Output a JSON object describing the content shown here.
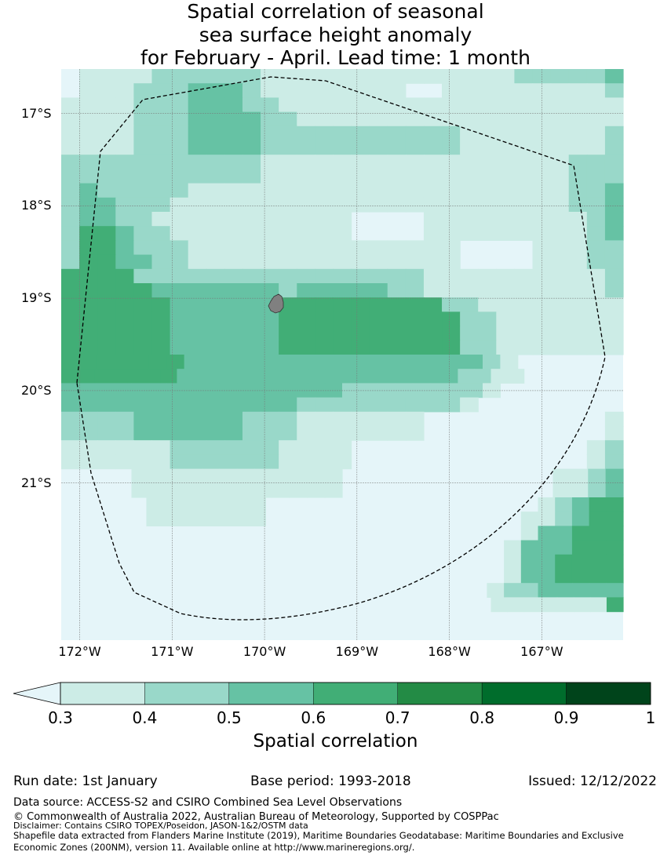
{
  "title": {
    "line1": "Spatial correlation of seasonal",
    "line2": "sea surface height anomaly",
    "line3": "for February - April. Lead time: 1 month"
  },
  "map": {
    "lat_labels": [
      "17°S",
      "18°S",
      "19°S",
      "20°S",
      "21°S"
    ],
    "lon_labels": [
      "172°W",
      "171°W",
      "170°W",
      "169°W",
      "168°W",
      "167°W"
    ],
    "lat_values": [
      -17,
      -18,
      -19,
      -20,
      -21
    ],
    "lon_values": [
      -172,
      -171,
      -170,
      -169,
      -168,
      -167
    ],
    "extent": {
      "lon_min": -172.2,
      "lon_max": -166.12,
      "lat_min": -22.7,
      "lat_max": -16.52
    },
    "island": "Niue",
    "eez_boundary": "dashed"
  },
  "colorbar": {
    "title": "Spatial correlation",
    "ticks": [
      "0.3",
      "0.4",
      "0.5",
      "0.6",
      "0.7",
      "0.8",
      "0.9",
      "1"
    ],
    "under_color": "#e5f5f9",
    "colors": [
      "#ccece6",
      "#99d8c9",
      "#66c2a4",
      "#41ae76",
      "#238b45",
      "#006d2c",
      "#00441b"
    ]
  },
  "footer": {
    "run_date": "Run date: 1st January",
    "base_period": "Base period: 1993-2018",
    "issued": "Issued: 12/12/2022",
    "data_source": "Data source: ACCESS-S2 and CSIRO Combined Sea Level Observations",
    "copyright": "© Commonwealth of Australia 2022, Australian Bureau of Meteorology, Supported by COSPPac",
    "disclaimer": "Disclaimer: Contains CSIRO TOPEX/Poseidon, JASON-1&2/OSTM data",
    "shapefile_line1": "Shapefile data extracted from Flanders Marine Institute (2019), Maritime Boundaries Geodatabase: Maritime Boundaries and Exclusive",
    "shapefile_line2": "Economic Zones (200NM), version 11. Available online at http://www.marineregions.org/."
  }
}
